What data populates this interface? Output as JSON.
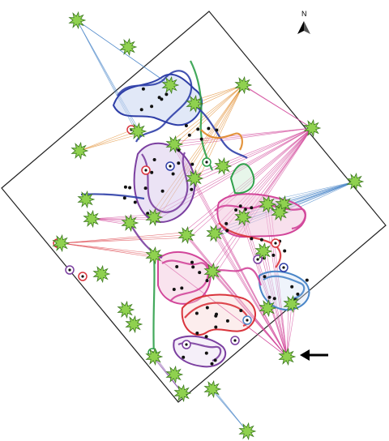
{
  "compass": {
    "label": "N"
  },
  "colors": {
    "frame": "#222222",
    "blue": "#2f3fa8",
    "purple": "#7b3fa0",
    "magenta": "#d2469a",
    "red": "#d9343c",
    "green": "#2fa04a",
    "orange": "#e08a2a",
    "light_blue": "#4a86c8",
    "node_fill": "#8fd14f",
    "node_stroke": "#3d7a1f",
    "dot": "#111111"
  },
  "icons": [
    "north-arrow-icon",
    "pointer-arrow-icon",
    "star-node-icon"
  ]
}
